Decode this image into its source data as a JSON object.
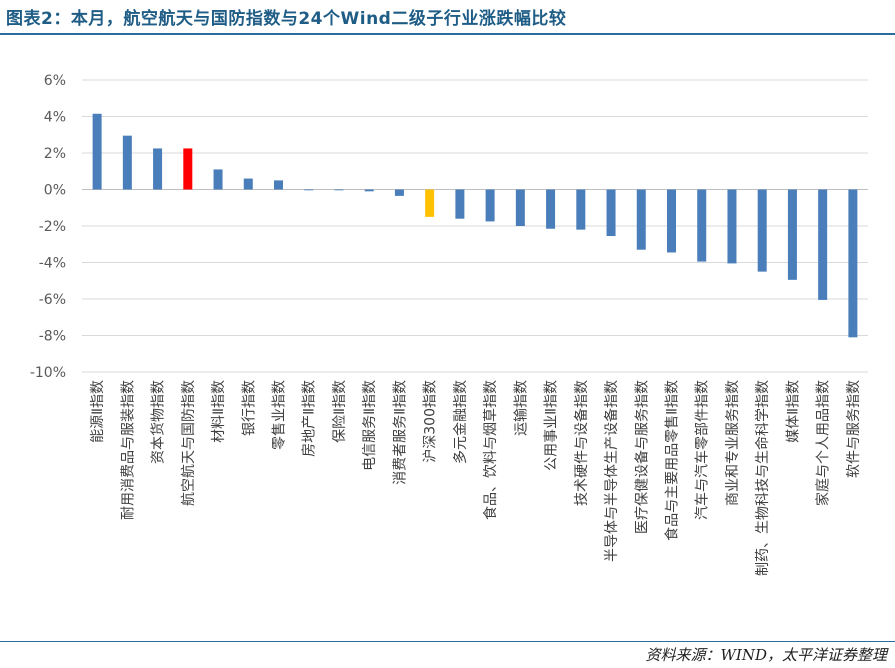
{
  "title": "图表2：本月，航空航天与国防指数与24个Wind二级子行业涨跌幅比较",
  "source": "资料来源：WIND，太平洋证券整理",
  "colors": {
    "default": "#4a7ebb",
    "highlight": "#ff0000",
    "index": "#ffc000",
    "title": "#1f5d86"
  },
  "chart_data": {
    "type": "bar",
    "title": "",
    "xlabel": "",
    "ylabel": "",
    "ylim": [
      -10,
      6
    ],
    "yticks": [
      "6%",
      "4%",
      "2%",
      "0%",
      "-2%",
      "-4%",
      "-6%",
      "-8%",
      "-10%"
    ],
    "grid": true,
    "categories": [
      "能源Ⅱ指数",
      "耐用消费品与服装指数",
      "资本货物指数",
      "航空航天与国防指数",
      "材料Ⅱ指数",
      "银行指数",
      "零售业指数",
      "房地产Ⅱ指数",
      "保险Ⅱ指数",
      "电信服务Ⅱ指数",
      "消费者服务Ⅱ指数",
      "沪深300指数",
      "多元金融指数",
      "食品、饮料与烟草指数",
      "运输指数",
      "公用事业Ⅱ指数",
      "技术硬件与设备指数",
      "半导体与半导体生产设备指数",
      "医疗保健设备与服务指数",
      "食品与主要用品零售Ⅱ指数",
      "汽车与汽车零部件指数",
      "商业和专业服务指数",
      "制药、生物科技与生命科学指数",
      "媒体Ⅱ指数",
      "家庭与个人用品指数",
      "软件与服务指数"
    ],
    "values": [
      4.15,
      2.95,
      2.25,
      2.25,
      1.1,
      0.6,
      0.5,
      0.0,
      0.0,
      -0.1,
      -0.35,
      -1.5,
      -1.6,
      -1.75,
      -2.0,
      -2.15,
      -2.2,
      -2.55,
      -3.3,
      -3.45,
      -3.95,
      -4.05,
      -4.5,
      -4.95,
      -6.05,
      -8.1
    ],
    "highlight": {
      "航空航天与国防指数": "red",
      "沪深300指数": "gold"
    }
  }
}
